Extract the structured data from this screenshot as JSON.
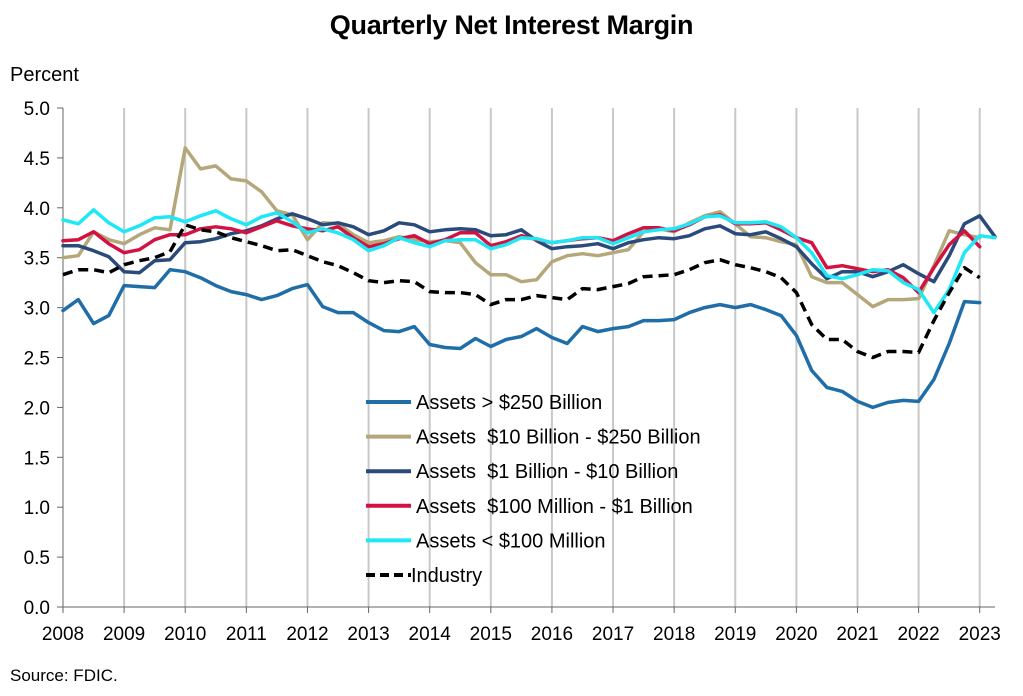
{
  "title": "Quarterly Net Interest Margin",
  "y_unit_label": "Percent",
  "source": "Source: FDIC.",
  "chart_data": {
    "type": "line",
    "title": "Quarterly Net Interest Margin",
    "ylabel": "Percent",
    "xlabel": "",
    "ylim": [
      0,
      5.0
    ],
    "xlim": [
      2008,
      2023.25
    ],
    "y_ticks": [
      "0.0",
      "0.5",
      "1.0",
      "1.5",
      "2.0",
      "2.5",
      "3.0",
      "3.5",
      "4.0",
      "4.5",
      "5.0"
    ],
    "x_ticks": [
      "2008",
      "2009",
      "2010",
      "2011",
      "2012",
      "2013",
      "2014",
      "2015",
      "2016",
      "2017",
      "2018",
      "2019",
      "2020",
      "2021",
      "2022",
      "2023"
    ],
    "grid": "vertical",
    "legend_position": "center-left",
    "x_start": 2008.0,
    "x_step": 0.25,
    "series": [
      {
        "name": "Assets > $250 Billion",
        "color": "#1f6ea8",
        "dash": "solid",
        "values": [
          2.97,
          3.08,
          2.84,
          2.92,
          3.22,
          3.21,
          3.2,
          3.38,
          3.36,
          3.3,
          3.22,
          3.16,
          3.13,
          3.08,
          3.12,
          3.19,
          3.23,
          3.01,
          2.95,
          2.95,
          2.85,
          2.77,
          2.76,
          2.81,
          2.63,
          2.6,
          2.59,
          2.69,
          2.61,
          2.68,
          2.71,
          2.79,
          2.7,
          2.64,
          2.81,
          2.76,
          2.79,
          2.81,
          2.87,
          2.87,
          2.88,
          2.95,
          3.0,
          3.03,
          3.0,
          3.03,
          2.98,
          2.92,
          2.72,
          2.37,
          2.2,
          2.16,
          2.06,
          2.0,
          2.05,
          2.07,
          2.06,
          2.28,
          2.64,
          3.06,
          3.05
        ]
      },
      {
        "name": "Assets  $10 Billion - $250 Billion",
        "color": "#b5a77a",
        "dash": "solid",
        "values": [
          3.5,
          3.52,
          3.76,
          3.68,
          3.64,
          3.73,
          3.8,
          3.78,
          4.6,
          4.39,
          4.42,
          4.29,
          4.27,
          4.16,
          3.97,
          3.93,
          3.68,
          3.85,
          3.84,
          3.73,
          3.65,
          3.67,
          3.71,
          3.68,
          3.66,
          3.67,
          3.65,
          3.45,
          3.33,
          3.33,
          3.26,
          3.28,
          3.46,
          3.52,
          3.54,
          3.52,
          3.55,
          3.58,
          3.76,
          3.79,
          3.76,
          3.85,
          3.92,
          3.96,
          3.84,
          3.71,
          3.7,
          3.66,
          3.63,
          3.31,
          3.25,
          3.25,
          3.13,
          3.01,
          3.08,
          3.08,
          3.09,
          3.42,
          3.77,
          3.73,
          3.7
        ]
      },
      {
        "name": "Assets  $1 Billion - $10 Billion",
        "color": "#2a4a7b",
        "dash": "solid",
        "values": [
          3.62,
          3.62,
          3.57,
          3.51,
          3.36,
          3.35,
          3.47,
          3.48,
          3.65,
          3.66,
          3.69,
          3.74,
          3.77,
          3.82,
          3.89,
          3.94,
          3.89,
          3.83,
          3.85,
          3.81,
          3.73,
          3.77,
          3.85,
          3.83,
          3.76,
          3.78,
          3.79,
          3.78,
          3.72,
          3.73,
          3.78,
          3.67,
          3.59,
          3.61,
          3.62,
          3.64,
          3.59,
          3.65,
          3.68,
          3.7,
          3.69,
          3.72,
          3.79,
          3.82,
          3.74,
          3.73,
          3.76,
          3.69,
          3.61,
          3.44,
          3.29,
          3.36,
          3.36,
          3.31,
          3.36,
          3.43,
          3.34,
          3.26,
          3.52,
          3.84,
          3.92,
          3.71
        ]
      },
      {
        "name": "Assets  $100 Million - $1 Billion",
        "color": "#d11242",
        "dash": "solid",
        "values": [
          3.67,
          3.68,
          3.76,
          3.64,
          3.55,
          3.58,
          3.68,
          3.73,
          3.73,
          3.79,
          3.81,
          3.79,
          3.75,
          3.81,
          3.87,
          3.82,
          3.79,
          3.77,
          3.81,
          3.7,
          3.61,
          3.64,
          3.69,
          3.72,
          3.64,
          3.68,
          3.75,
          3.75,
          3.62,
          3.66,
          3.72,
          3.68,
          3.65,
          3.67,
          3.69,
          3.7,
          3.67,
          3.74,
          3.8,
          3.8,
          3.77,
          3.83,
          3.91,
          3.93,
          3.84,
          3.84,
          3.85,
          3.78,
          3.7,
          3.65,
          3.4,
          3.42,
          3.39,
          3.36,
          3.38,
          3.3,
          3.15,
          3.4,
          3.63,
          3.77,
          3.61
        ]
      },
      {
        "name": "Assets < $100 Million",
        "color": "#1ee8f5",
        "dash": "solid",
        "values": [
          3.88,
          3.84,
          3.98,
          3.85,
          3.76,
          3.82,
          3.9,
          3.91,
          3.86,
          3.92,
          3.97,
          3.89,
          3.83,
          3.91,
          3.95,
          3.86,
          3.75,
          3.79,
          3.75,
          3.68,
          3.57,
          3.62,
          3.7,
          3.65,
          3.61,
          3.67,
          3.68,
          3.68,
          3.59,
          3.63,
          3.7,
          3.69,
          3.65,
          3.67,
          3.7,
          3.7,
          3.64,
          3.7,
          3.76,
          3.78,
          3.79,
          3.84,
          3.91,
          3.92,
          3.85,
          3.85,
          3.86,
          3.81,
          3.7,
          3.55,
          3.32,
          3.29,
          3.33,
          3.38,
          3.37,
          3.25,
          3.18,
          2.95,
          3.18,
          3.55,
          3.72,
          3.7
        ]
      },
      {
        "name": "Industry",
        "color": "#000000",
        "dash": "dashed",
        "values": [
          3.33,
          3.38,
          3.38,
          3.35,
          3.43,
          3.47,
          3.5,
          3.56,
          3.83,
          3.78,
          3.76,
          3.7,
          3.66,
          3.62,
          3.57,
          3.58,
          3.52,
          3.46,
          3.42,
          3.35,
          3.27,
          3.25,
          3.27,
          3.26,
          3.16,
          3.15,
          3.15,
          3.13,
          3.03,
          3.08,
          3.08,
          3.12,
          3.1,
          3.08,
          3.19,
          3.18,
          3.21,
          3.24,
          3.31,
          3.32,
          3.33,
          3.38,
          3.45,
          3.48,
          3.43,
          3.4,
          3.36,
          3.3,
          3.15,
          2.83,
          2.68,
          2.68,
          2.56,
          2.5,
          2.56,
          2.56,
          2.55,
          2.87,
          3.15,
          3.4,
          3.3
        ]
      }
    ]
  }
}
